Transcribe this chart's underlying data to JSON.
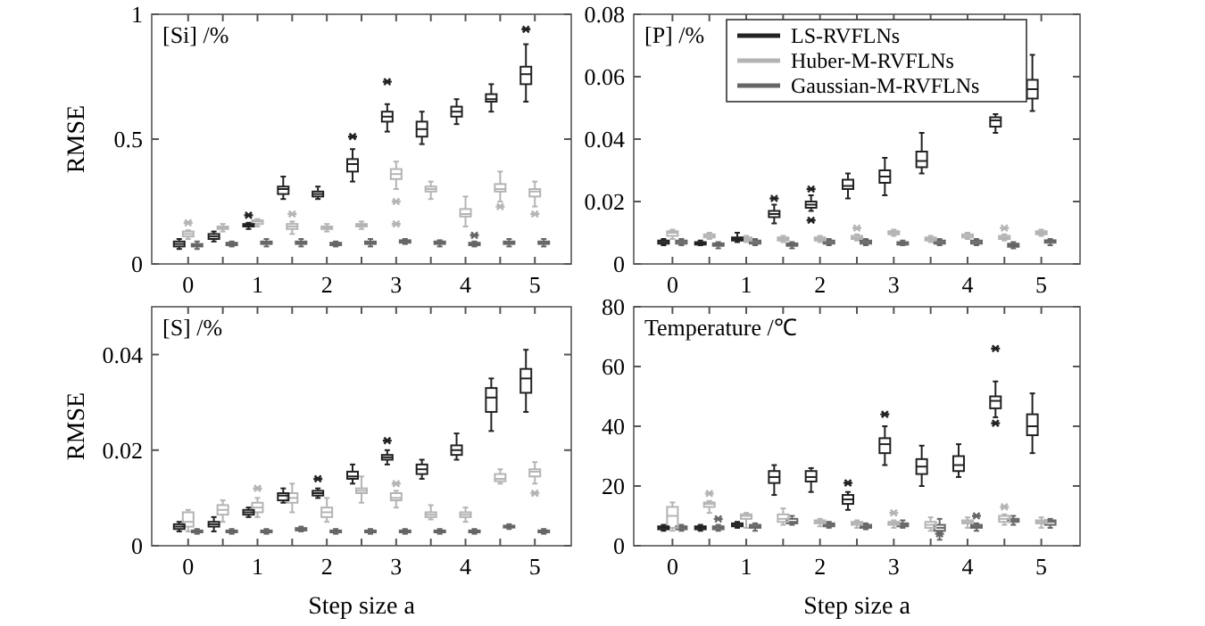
{
  "chart_data": [
    {
      "type": "box",
      "title": "[Si] /%",
      "ylabel": "RMSE",
      "categories": [
        "0",
        null,
        "1",
        null,
        "2",
        null,
        "3",
        null,
        "4",
        null,
        "5"
      ],
      "ylim": [
        0,
        1
      ],
      "yticks": [
        0,
        0.5,
        1
      ],
      "grid": false,
      "legend": false,
      "marker": "star",
      "series": [
        {
          "color": "#222222",
          "boxes": [
            {
              "low": 0.06,
              "q1": 0.07,
              "median": 0.08,
              "q3": 0.09,
              "high": 0.1
            },
            {
              "low": 0.09,
              "q1": 0.1,
              "median": 0.11,
              "q3": 0.12,
              "high": 0.13
            },
            {
              "low": 0.14,
              "q1": 0.15,
              "median": 0.155,
              "q3": 0.16,
              "high": 0.165,
              "outliers": [
                0.195
              ]
            },
            {
              "low": 0.26,
              "q1": 0.28,
              "median": 0.3,
              "q3": 0.31,
              "high": 0.35
            },
            {
              "low": 0.26,
              "q1": 0.27,
              "median": 0.28,
              "q3": 0.29,
              "high": 0.31
            },
            {
              "low": 0.33,
              "q1": 0.37,
              "median": 0.4,
              "q3": 0.42,
              "high": 0.46,
              "outliers": [
                0.51
              ]
            },
            {
              "low": 0.53,
              "q1": 0.57,
              "median": 0.59,
              "q3": 0.61,
              "high": 0.64,
              "outliers": [
                0.73
              ]
            },
            {
              "low": 0.48,
              "q1": 0.51,
              "median": 0.54,
              "q3": 0.57,
              "high": 0.61
            },
            {
              "low": 0.56,
              "q1": 0.59,
              "median": 0.61,
              "q3": 0.63,
              "high": 0.66
            },
            {
              "low": 0.61,
              "q1": 0.65,
              "median": 0.66,
              "q3": 0.68,
              "high": 0.72
            },
            {
              "low": 0.65,
              "q1": 0.72,
              "median": 0.76,
              "q3": 0.79,
              "high": 0.88,
              "outliers": [
                0.94
              ]
            }
          ]
        },
        {
          "color": "#b4b4b4",
          "boxes": [
            {
              "low": 0.1,
              "q1": 0.11,
              "median": 0.12,
              "q3": 0.13,
              "high": 0.135,
              "outliers": [
                0.165
              ]
            },
            {
              "low": 0.13,
              "q1": 0.14,
              "median": 0.145,
              "q3": 0.15,
              "high": 0.16
            },
            {
              "low": 0.15,
              "q1": 0.16,
              "median": 0.17,
              "q3": 0.175,
              "high": 0.18
            },
            {
              "low": 0.12,
              "q1": 0.14,
              "median": 0.15,
              "q3": 0.16,
              "high": 0.17,
              "outliers": [
                0.2
              ]
            },
            {
              "low": 0.13,
              "q1": 0.14,
              "median": 0.145,
              "q3": 0.15,
              "high": 0.16
            },
            {
              "low": 0.14,
              "q1": 0.15,
              "median": 0.155,
              "q3": 0.16,
              "high": 0.17
            },
            {
              "low": 0.3,
              "q1": 0.34,
              "median": 0.36,
              "q3": 0.38,
              "high": 0.41,
              "outliers": [
                0.25,
                0.16
              ]
            },
            {
              "low": 0.26,
              "q1": 0.29,
              "median": 0.3,
              "q3": 0.31,
              "high": 0.33
            },
            {
              "low": 0.15,
              "q1": 0.19,
              "median": 0.2,
              "q3": 0.22,
              "high": 0.27
            },
            {
              "low": 0.25,
              "q1": 0.29,
              "median": 0.3,
              "q3": 0.32,
              "high": 0.37,
              "outliers": [
                0.23
              ]
            },
            {
              "low": 0.23,
              "q1": 0.27,
              "median": 0.29,
              "q3": 0.3,
              "high": 0.33,
              "outliers": [
                0.2
              ]
            }
          ]
        },
        {
          "color": "#666666",
          "boxes": [
            {
              "low": 0.06,
              "q1": 0.07,
              "median": 0.075,
              "q3": 0.08,
              "high": 0.09
            },
            {
              "low": 0.07,
              "q1": 0.075,
              "median": 0.08,
              "q3": 0.085,
              "high": 0.09
            },
            {
              "low": 0.07,
              "q1": 0.08,
              "median": 0.085,
              "q3": 0.09,
              "high": 0.1
            },
            {
              "low": 0.07,
              "q1": 0.08,
              "median": 0.085,
              "q3": 0.09,
              "high": 0.1
            },
            {
              "low": 0.07,
              "q1": 0.075,
              "median": 0.08,
              "q3": 0.085,
              "high": 0.09
            },
            {
              "low": 0.07,
              "q1": 0.08,
              "median": 0.085,
              "q3": 0.09,
              "high": 0.1
            },
            {
              "low": 0.08,
              "q1": 0.085,
              "median": 0.09,
              "q3": 0.095,
              "high": 0.1
            },
            {
              "low": 0.07,
              "q1": 0.08,
              "median": 0.085,
              "q3": 0.09,
              "high": 0.095
            },
            {
              "low": 0.07,
              "q1": 0.075,
              "median": 0.08,
              "q3": 0.085,
              "high": 0.09,
              "outliers": [
                0.115
              ]
            },
            {
              "low": 0.07,
              "q1": 0.08,
              "median": 0.085,
              "q3": 0.09,
              "high": 0.1
            },
            {
              "low": 0.07,
              "q1": 0.08,
              "median": 0.085,
              "q3": 0.09,
              "high": 0.1
            }
          ]
        }
      ]
    },
    {
      "type": "box",
      "title": "[P] /%",
      "categories": [
        "0",
        null,
        "1",
        null,
        "2",
        null,
        "3",
        null,
        "4",
        null,
        "5"
      ],
      "ylim": [
        0,
        0.08
      ],
      "yticks": [
        0,
        0.02,
        0.04,
        0.06,
        0.08
      ],
      "grid": false,
      "legend": "top right",
      "marker": "star",
      "series": [
        {
          "name": "LS-RVFLNs",
          "color": "#222222",
          "boxes": [
            {
              "low": 0.006,
              "q1": 0.0065,
              "median": 0.007,
              "q3": 0.0075,
              "high": 0.008
            },
            {
              "low": 0.006,
              "q1": 0.0062,
              "median": 0.0066,
              "q3": 0.007,
              "high": 0.0075
            },
            {
              "low": 0.007,
              "q1": 0.0075,
              "median": 0.008,
              "q3": 0.0085,
              "high": 0.01
            },
            {
              "low": 0.013,
              "q1": 0.015,
              "median": 0.016,
              "q3": 0.017,
              "high": 0.019,
              "outliers": [
                0.021
              ]
            },
            {
              "low": 0.017,
              "q1": 0.018,
              "median": 0.019,
              "q3": 0.02,
              "high": 0.022,
              "outliers": [
                0.024,
                0.014
              ]
            },
            {
              "low": 0.021,
              "q1": 0.024,
              "median": 0.025,
              "q3": 0.027,
              "high": 0.029
            },
            {
              "low": 0.022,
              "q1": 0.026,
              "median": 0.028,
              "q3": 0.03,
              "high": 0.034
            },
            {
              "low": 0.029,
              "q1": 0.031,
              "median": 0.033,
              "q3": 0.036,
              "high": 0.042
            },
            null,
            {
              "low": 0.042,
              "q1": 0.044,
              "median": 0.046,
              "q3": 0.047,
              "high": 0.048
            },
            {
              "low": 0.049,
              "q1": 0.053,
              "median": 0.056,
              "q3": 0.059,
              "high": 0.067
            }
          ]
        },
        {
          "name": "Huber-M-RVFLNs",
          "color": "#b4b4b4",
          "boxes": [
            {
              "low": 0.008,
              "q1": 0.009,
              "median": 0.01,
              "q3": 0.0105,
              "high": 0.011
            },
            {
              "low": 0.008,
              "q1": 0.0085,
              "median": 0.009,
              "q3": 0.0095,
              "high": 0.01
            },
            {
              "low": 0.007,
              "q1": 0.0075,
              "median": 0.008,
              "q3": 0.0085,
              "high": 0.009
            },
            {
              "low": 0.007,
              "q1": 0.0075,
              "median": 0.008,
              "q3": 0.0085,
              "high": 0.009
            },
            {
              "low": 0.007,
              "q1": 0.0075,
              "median": 0.008,
              "q3": 0.0085,
              "high": 0.009
            },
            {
              "low": 0.0075,
              "q1": 0.008,
              "median": 0.0085,
              "q3": 0.009,
              "high": 0.0095,
              "outliers": [
                0.0115
              ]
            },
            {
              "low": 0.009,
              "q1": 0.0095,
              "median": 0.01,
              "q3": 0.0105,
              "high": 0.011
            },
            {
              "low": 0.007,
              "q1": 0.0075,
              "median": 0.008,
              "q3": 0.0085,
              "high": 0.009
            },
            {
              "low": 0.008,
              "q1": 0.0085,
              "median": 0.009,
              "q3": 0.0095,
              "high": 0.01
            },
            {
              "low": 0.0075,
              "q1": 0.008,
              "median": 0.0085,
              "q3": 0.009,
              "high": 0.0095,
              "outliers": [
                0.0115
              ]
            },
            {
              "low": 0.009,
              "q1": 0.0095,
              "median": 0.01,
              "q3": 0.0105,
              "high": 0.011
            }
          ]
        },
        {
          "name": "Gaussian-M-RVFLNs",
          "color": "#666666",
          "boxes": [
            {
              "low": 0.006,
              "q1": 0.0065,
              "median": 0.007,
              "q3": 0.0075,
              "high": 0.008
            },
            {
              "low": 0.005,
              "q1": 0.0058,
              "median": 0.0062,
              "q3": 0.0066,
              "high": 0.007
            },
            {
              "low": 0.006,
              "q1": 0.0065,
              "median": 0.007,
              "q3": 0.0075,
              "high": 0.008
            },
            {
              "low": 0.005,
              "q1": 0.0058,
              "median": 0.0062,
              "q3": 0.0066,
              "high": 0.007
            },
            {
              "low": 0.006,
              "q1": 0.0065,
              "median": 0.007,
              "q3": 0.0075,
              "high": 0.008
            },
            {
              "low": 0.006,
              "q1": 0.0065,
              "median": 0.007,
              "q3": 0.0075,
              "high": 0.008
            },
            {
              "low": 0.006,
              "q1": 0.0062,
              "median": 0.0066,
              "q3": 0.007,
              "high": 0.0075
            },
            {
              "low": 0.006,
              "q1": 0.0065,
              "median": 0.007,
              "q3": 0.0075,
              "high": 0.008
            },
            {
              "low": 0.006,
              "q1": 0.0065,
              "median": 0.007,
              "q3": 0.0075,
              "high": 0.008
            },
            {
              "low": 0.005,
              "q1": 0.0055,
              "median": 0.006,
              "q3": 0.0065,
              "high": 0.007
            },
            {
              "low": 0.006,
              "q1": 0.0068,
              "median": 0.0072,
              "q3": 0.0076,
              "high": 0.008
            }
          ]
        }
      ]
    },
    {
      "type": "box",
      "title": "[S] /%",
      "xlabel": "Step size a",
      "ylabel": "RMSE",
      "categories": [
        "0",
        null,
        "1",
        null,
        "2",
        null,
        "3",
        null,
        "4",
        null,
        "5"
      ],
      "ylim": [
        0,
        0.05
      ],
      "yticks": [
        0,
        0.02,
        0.04
      ],
      "grid": false,
      "legend": false,
      "marker": "star",
      "series": [
        {
          "color": "#222222",
          "boxes": [
            {
              "low": 0.003,
              "q1": 0.0035,
              "median": 0.004,
              "q3": 0.0045,
              "high": 0.005
            },
            {
              "low": 0.003,
              "q1": 0.004,
              "median": 0.0045,
              "q3": 0.005,
              "high": 0.006
            },
            {
              "low": 0.006,
              "q1": 0.0065,
              "median": 0.007,
              "q3": 0.0075,
              "high": 0.008
            },
            {
              "low": 0.009,
              "q1": 0.0095,
              "median": 0.0105,
              "q3": 0.011,
              "high": 0.012
            },
            {
              "low": 0.01,
              "q1": 0.0105,
              "median": 0.011,
              "q3": 0.0115,
              "high": 0.012,
              "outliers": [
                0.014
              ]
            },
            {
              "low": 0.013,
              "q1": 0.014,
              "median": 0.0145,
              "q3": 0.0155,
              "high": 0.017
            },
            {
              "low": 0.017,
              "q1": 0.018,
              "median": 0.0185,
              "q3": 0.019,
              "high": 0.02,
              "outliers": [
                0.022
              ]
            },
            {
              "low": 0.014,
              "q1": 0.015,
              "median": 0.016,
              "q3": 0.017,
              "high": 0.018
            },
            {
              "low": 0.018,
              "q1": 0.019,
              "median": 0.02,
              "q3": 0.021,
              "high": 0.0235
            },
            {
              "low": 0.024,
              "q1": 0.028,
              "median": 0.031,
              "q3": 0.033,
              "high": 0.035
            },
            {
              "low": 0.028,
              "q1": 0.032,
              "median": 0.035,
              "q3": 0.037,
              "high": 0.041
            }
          ]
        },
        {
          "color": "#b4b4b4",
          "boxes": [
            {
              "low": 0.003,
              "q1": 0.004,
              "median": 0.005,
              "q3": 0.007,
              "high": 0.0075
            },
            {
              "low": 0.005,
              "q1": 0.0065,
              "median": 0.0075,
              "q3": 0.0085,
              "high": 0.0095
            },
            {
              "low": 0.006,
              "q1": 0.007,
              "median": 0.008,
              "q3": 0.009,
              "high": 0.01,
              "outliers": [
                0.012
              ]
            },
            {
              "low": 0.007,
              "q1": 0.009,
              "median": 0.01,
              "q3": 0.011,
              "high": 0.013
            },
            {
              "low": 0.005,
              "q1": 0.006,
              "median": 0.007,
              "q3": 0.008,
              "high": 0.01
            },
            {
              "low": 0.009,
              "q1": 0.011,
              "median": 0.0115,
              "q3": 0.012,
              "high": 0.0145
            },
            {
              "low": 0.008,
              "q1": 0.0095,
              "median": 0.01,
              "q3": 0.011,
              "high": 0.0115,
              "outliers": [
                0.013
              ]
            },
            {
              "low": 0.0055,
              "q1": 0.006,
              "median": 0.0065,
              "q3": 0.007,
              "high": 0.0085
            },
            {
              "low": 0.005,
              "q1": 0.006,
              "median": 0.0065,
              "q3": 0.007,
              "high": 0.008
            },
            {
              "low": 0.013,
              "q1": 0.0135,
              "median": 0.014,
              "q3": 0.015,
              "high": 0.016
            },
            {
              "low": 0.013,
              "q1": 0.0145,
              "median": 0.0155,
              "q3": 0.016,
              "high": 0.0175,
              "outliers": [
                0.011
              ]
            }
          ]
        },
        {
          "color": "#666666",
          "boxes": [
            {
              "low": 0.0025,
              "q1": 0.0028,
              "median": 0.003,
              "q3": 0.0032,
              "high": 0.0035
            },
            {
              "low": 0.0025,
              "q1": 0.0028,
              "median": 0.003,
              "q3": 0.0032,
              "high": 0.0035
            },
            {
              "low": 0.0025,
              "q1": 0.0028,
              "median": 0.003,
              "q3": 0.0032,
              "high": 0.0035
            },
            {
              "low": 0.003,
              "q1": 0.0032,
              "median": 0.0035,
              "q3": 0.0037,
              "high": 0.004
            },
            {
              "low": 0.0025,
              "q1": 0.0028,
              "median": 0.003,
              "q3": 0.0032,
              "high": 0.0035
            },
            {
              "low": 0.0025,
              "q1": 0.0028,
              "median": 0.003,
              "q3": 0.0032,
              "high": 0.0035
            },
            {
              "low": 0.0025,
              "q1": 0.0028,
              "median": 0.003,
              "q3": 0.0032,
              "high": 0.0035
            },
            {
              "low": 0.0025,
              "q1": 0.0028,
              "median": 0.003,
              "q3": 0.0032,
              "high": 0.0035
            },
            {
              "low": 0.0025,
              "q1": 0.0028,
              "median": 0.003,
              "q3": 0.0032,
              "high": 0.0035
            },
            {
              "low": 0.0035,
              "q1": 0.0038,
              "median": 0.004,
              "q3": 0.0042,
              "high": 0.0045
            },
            {
              "low": 0.0025,
              "q1": 0.0028,
              "median": 0.003,
              "q3": 0.0032,
              "high": 0.0035
            }
          ]
        }
      ]
    },
    {
      "type": "box",
      "title": "Temperature /℃",
      "xlabel": "Step size a",
      "categories": [
        "0",
        null,
        "1",
        null,
        "2",
        null,
        "3",
        null,
        "4",
        null,
        "5"
      ],
      "ylim": [
        0,
        80
      ],
      "yticks": [
        0,
        20,
        40,
        60,
        80
      ],
      "grid": false,
      "legend": false,
      "marker": "star",
      "series": [
        {
          "color": "#222222",
          "boxes": [
            {
              "low": 5,
              "q1": 5.5,
              "median": 6,
              "q3": 6.5,
              "high": 7
            },
            {
              "low": 5,
              "q1": 5.5,
              "median": 6,
              "q3": 6.5,
              "high": 7
            },
            {
              "low": 6,
              "q1": 6.5,
              "median": 7,
              "q3": 7.5,
              "high": 8
            },
            {
              "low": 17,
              "q1": 21,
              "median": 23,
              "q3": 25,
              "high": 27
            },
            {
              "low": 18,
              "q1": 21.5,
              "median": 23,
              "q3": 25,
              "high": 26
            },
            {
              "low": 12,
              "q1": 14,
              "median": 15.5,
              "q3": 17,
              "high": 18,
              "outliers": [
                21
              ]
            },
            {
              "low": 27,
              "q1": 31,
              "median": 34,
              "q3": 36,
              "high": 40,
              "outliers": [
                44
              ]
            },
            {
              "low": 20,
              "q1": 24,
              "median": 26.5,
              "q3": 29,
              "high": 33.5
            },
            {
              "low": 23,
              "q1": 25,
              "median": 27,
              "q3": 30,
              "high": 34
            },
            {
              "low": 43,
              "q1": 46,
              "median": 48.5,
              "q3": 50,
              "high": 55,
              "outliers": [
                66,
                41
              ]
            },
            {
              "low": 31,
              "q1": 37,
              "median": 40,
              "q3": 44,
              "high": 51
            }
          ]
        },
        {
          "color": "#b4b4b4",
          "boxes": [
            {
              "low": 5,
              "q1": 6,
              "median": 10,
              "q3": 13,
              "high": 14.5
            },
            {
              "low": 11,
              "q1": 13,
              "median": 14,
              "q3": 14.5,
              "high": 15,
              "outliers": [
                17.5
              ]
            },
            {
              "low": 6,
              "q1": 9,
              "median": 10,
              "q3": 10.5,
              "high": 11
            },
            {
              "low": 7,
              "q1": 8,
              "median": 9,
              "q3": 10.5,
              "high": 12.5
            },
            {
              "low": 6.5,
              "q1": 7.5,
              "median": 8,
              "q3": 8.5,
              "high": 9
            },
            {
              "low": 6,
              "q1": 7,
              "median": 7.5,
              "q3": 8,
              "high": 8.5
            },
            {
              "low": 6,
              "q1": 7,
              "median": 7.5,
              "q3": 8,
              "high": 8.5,
              "outliers": [
                11
              ]
            },
            {
              "low": 5,
              "q1": 6,
              "median": 7,
              "q3": 8,
              "high": 9.5
            },
            {
              "low": 6,
              "q1": 7.5,
              "median": 8,
              "q3": 8.5,
              "high": 9.5
            },
            {
              "low": 7,
              "q1": 8,
              "median": 9,
              "q3": 10,
              "high": 10.5,
              "outliers": [
                13
              ]
            },
            {
              "low": 6,
              "q1": 7.5,
              "median": 8,
              "q3": 8.5,
              "high": 9.5
            }
          ]
        },
        {
          "color": "#666666",
          "boxes": [
            {
              "low": 5,
              "q1": 5.5,
              "median": 6,
              "q3": 6.5,
              "high": 7
            },
            {
              "low": 5,
              "q1": 5.5,
              "median": 6,
              "q3": 6.5,
              "high": 7,
              "outliers": [
                9
              ]
            },
            {
              "low": 5,
              "q1": 6,
              "median": 6.5,
              "q3": 7,
              "high": 7.5
            },
            {
              "low": 7,
              "q1": 7.5,
              "median": 8,
              "q3": 9,
              "high": 10
            },
            {
              "low": 6,
              "q1": 6.5,
              "median": 7,
              "q3": 7.5,
              "high": 8
            },
            {
              "low": 5.5,
              "q1": 6,
              "median": 6.5,
              "q3": 7,
              "high": 7.5
            },
            {
              "low": 6,
              "q1": 6.5,
              "median": 7,
              "q3": 7.5,
              "high": 8.5
            },
            {
              "low": 2,
              "q1": 5,
              "median": 6,
              "q3": 7,
              "high": 9,
              "outliers": [
                4
              ]
            },
            {
              "low": 5,
              "q1": 6,
              "median": 6.5,
              "q3": 7,
              "high": 7.5,
              "outliers": [
                10
              ]
            },
            {
              "low": 7,
              "q1": 8,
              "median": 8.5,
              "q3": 9,
              "high": 10
            },
            {
              "low": 6,
              "q1": 7,
              "median": 8,
              "q3": 8.5,
              "high": 9
            }
          ]
        }
      ]
    }
  ]
}
